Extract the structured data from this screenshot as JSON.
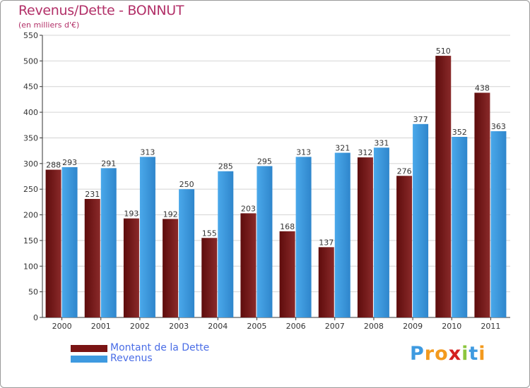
{
  "title": "Revenus/Dette - BONNUT",
  "subtitle": "(en milliers d'€)",
  "colors": {
    "debt": "#7a1414",
    "revenue": "#3e9ae0",
    "grid": "#d4d4d4",
    "axis": "#333333"
  },
  "chart_data": {
    "type": "bar",
    "categories": [
      "2000",
      "2001",
      "2002",
      "2003",
      "2004",
      "2005",
      "2006",
      "2007",
      "2008",
      "2009",
      "2010",
      "2011"
    ],
    "series": [
      {
        "name": "Montant de la Dette",
        "values": [
          288,
          231,
          193,
          192,
          155,
          203,
          168,
          137,
          312,
          276,
          510,
          438
        ]
      },
      {
        "name": "Revenus",
        "values": [
          293,
          291,
          313,
          250,
          285,
          295,
          313,
          321,
          331,
          377,
          352,
          363
        ]
      }
    ],
    "ylim": [
      0,
      550
    ],
    "yticks": [
      0,
      50,
      100,
      150,
      200,
      250,
      300,
      350,
      400,
      450,
      500,
      550
    ],
    "grid": true,
    "legend": "bottom-left"
  },
  "legend": [
    {
      "label": "Montant de la Dette"
    },
    {
      "label": "Revenus"
    }
  ],
  "logo": {
    "letters": [
      "P",
      "r",
      "o",
      "x",
      "i",
      "t",
      "i"
    ],
    "colors": [
      "#3e9ae0",
      "#f39a1e",
      "#f39a1e",
      "#d42020",
      "#8cc63f",
      "#3e9ae0",
      "#f39a1e"
    ]
  }
}
